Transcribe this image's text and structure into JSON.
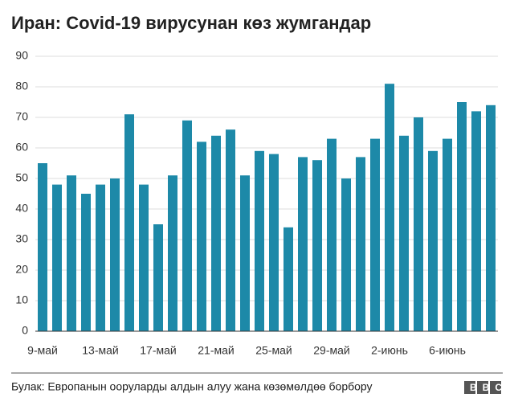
{
  "chart_data": {
    "type": "bar",
    "title": "Иран: Covid-19 вирусунан көз жумгандар",
    "categories": [
      "9-май",
      null,
      null,
      null,
      "13-май",
      null,
      null,
      null,
      "17-май",
      null,
      null,
      null,
      "21-май",
      null,
      null,
      null,
      "25-май",
      null,
      null,
      null,
      "29-май",
      null,
      null,
      null,
      "2-июнь",
      null,
      null,
      null,
      "6-июнь",
      null,
      null,
      null
    ],
    "values": [
      55,
      48,
      51,
      45,
      48,
      50,
      71,
      48,
      35,
      51,
      69,
      62,
      64,
      66,
      51,
      59,
      58,
      34,
      57,
      56,
      63,
      50,
      57,
      63,
      81,
      64,
      70,
      59,
      63,
      75,
      72,
      74
    ],
    "color": "#1d89a8",
    "ylim": [
      0,
      90
    ],
    "yticks": [
      0,
      10,
      20,
      30,
      40,
      50,
      60,
      70,
      80,
      90
    ],
    "grid": true,
    "source": "Булак: Европанын ооруларды алдын алуу жана көзөмөлдөө борбору",
    "logo": "BBC"
  }
}
